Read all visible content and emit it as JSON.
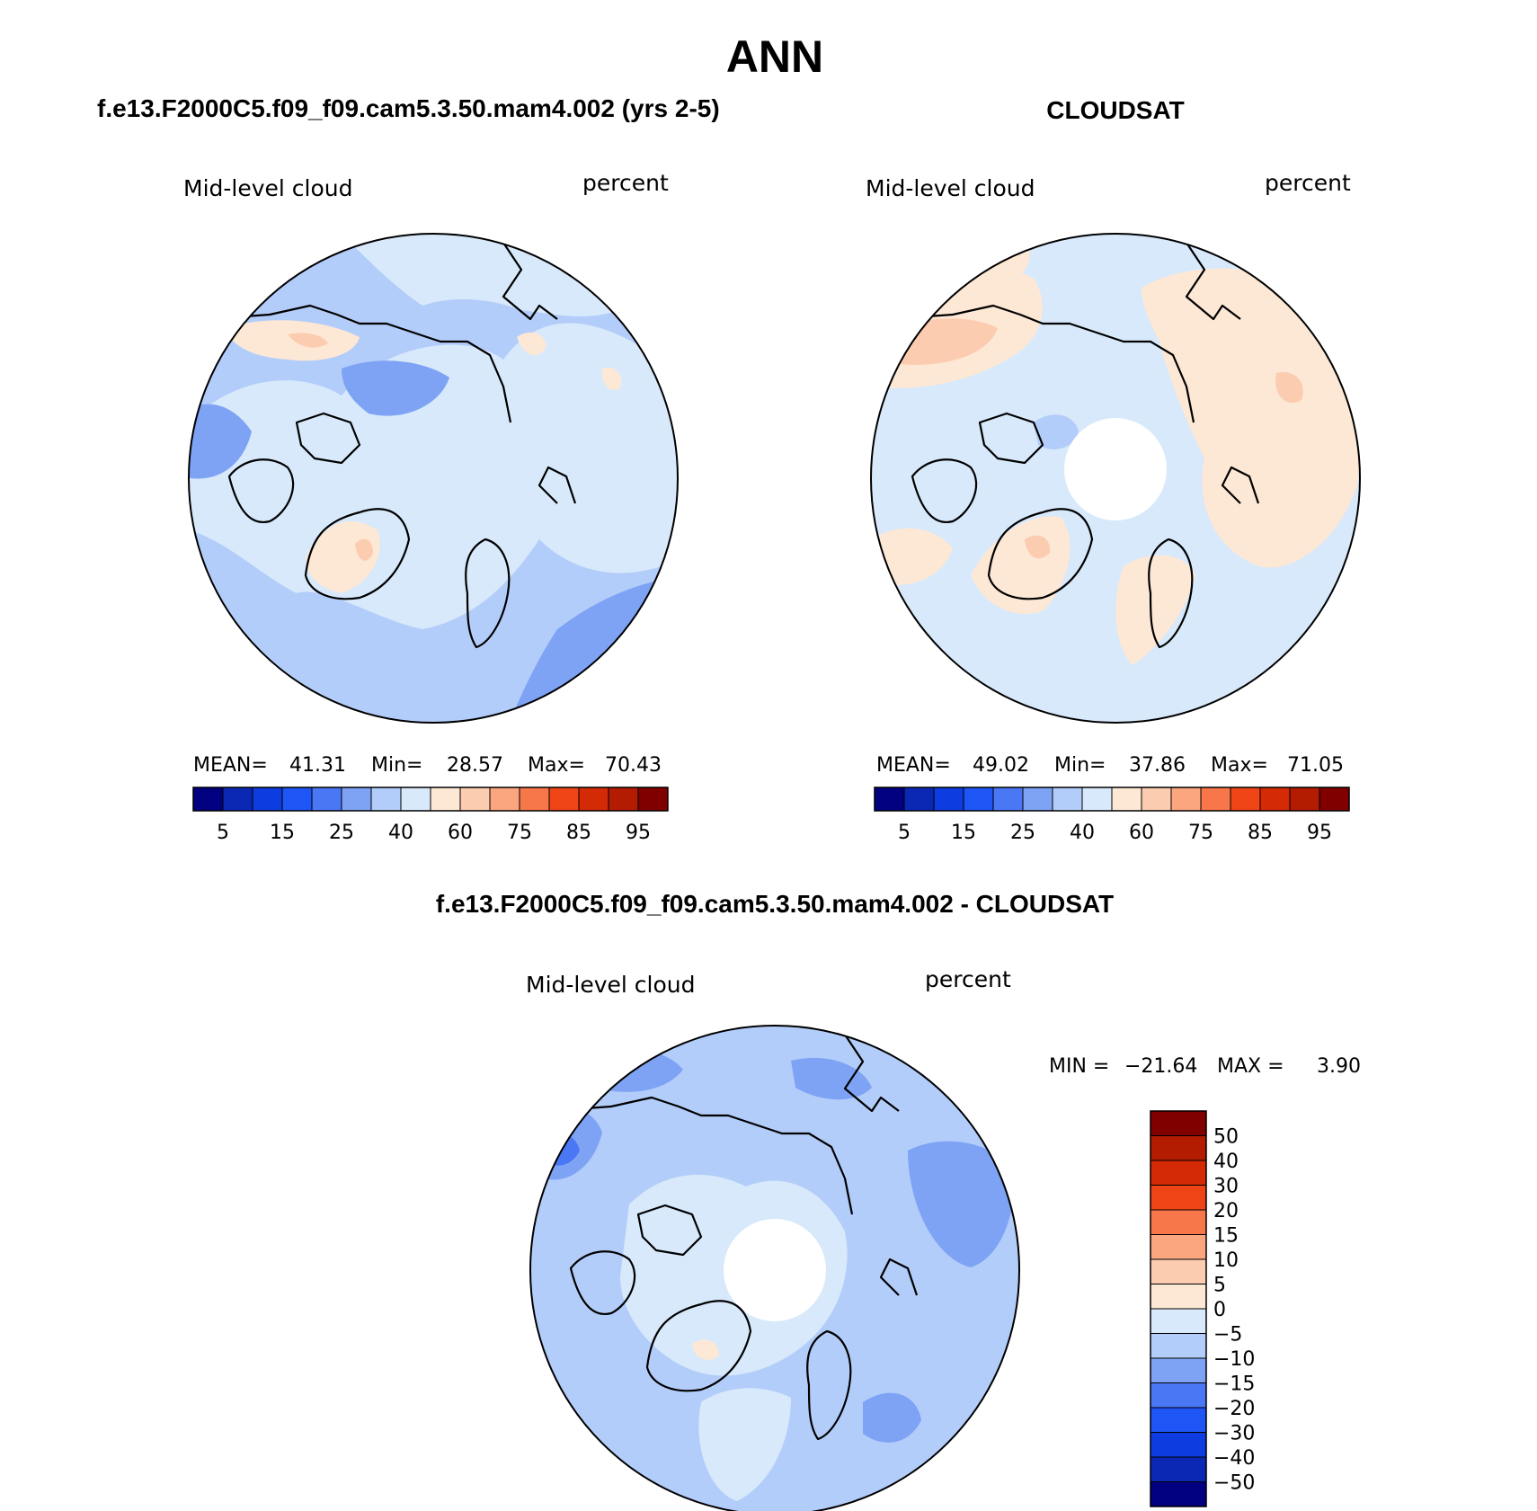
{
  "figure": {
    "title": "ANN",
    "units_label": "percent",
    "variable_label": "Mid-level cloud"
  },
  "colors": {
    "full_scale": [
      "#000080",
      "#0a28b4",
      "#0d3de0",
      "#1e55f5",
      "#4a78f5",
      "#7ea3f5",
      "#b3cdfa",
      "#d8e9fb",
      "#fde8d6",
      "#fcccb0",
      "#fba67f",
      "#f8774a",
      "#ee4416",
      "#d42a05",
      "#b31c00",
      "#800000"
    ],
    "diff_scale": [
      "#000080",
      "#0a28b4",
      "#0d3de0",
      "#1e55f5",
      "#4a78f5",
      "#7ea3f5",
      "#b3cdfa",
      "#d8e9fb",
      "#fde8d6",
      "#fcccb0",
      "#fba67f",
      "#f8774a",
      "#ee4416",
      "#d42a05",
      "#b31c00",
      "#800000"
    ],
    "coast": "#000000"
  },
  "chart_data": [
    {
      "type": "heatmap",
      "title": "f.e13.F2000C5.f09_f09.cam5.3.50.mam4.002 (yrs 2-5)",
      "projection": "north polar stereographic",
      "variable": "Mid-level cloud",
      "units": "percent",
      "stats": {
        "mean_label": "MEAN=",
        "mean": "41.31",
        "min_label": "Min=",
        "min": "28.57",
        "max_label": "Max=",
        "max": "70.43"
      },
      "colorbar_levels": [
        5,
        10,
        15,
        20,
        25,
        30,
        40,
        50,
        60,
        70,
        75,
        80,
        85,
        90,
        95
      ],
      "colorbar_labels": [
        "5",
        "15",
        "25",
        "40",
        "60",
        "75",
        "85",
        "95"
      ],
      "dominant_range": [
        30,
        50
      ]
    },
    {
      "type": "heatmap",
      "title": "CLOUDSAT",
      "projection": "north polar stereographic",
      "variable": "Mid-level cloud",
      "units": "percent",
      "stats": {
        "mean_label": "MEAN=",
        "mean": "49.02",
        "min_label": "Min=",
        "min": "37.86",
        "max_label": "Max=",
        "max": "71.05"
      },
      "colorbar_levels": [
        5,
        10,
        15,
        20,
        25,
        30,
        40,
        50,
        60,
        70,
        75,
        80,
        85,
        90,
        95
      ],
      "colorbar_labels": [
        "5",
        "15",
        "25",
        "40",
        "60",
        "75",
        "85",
        "95"
      ],
      "missing_region": "pole cap"
    },
    {
      "type": "heatmap",
      "title": "f.e13.F2000C5.f09_f09.cam5.3.50.mam4.002 - CLOUDSAT",
      "projection": "north polar stereographic",
      "variable": "Mid-level cloud",
      "units": "percent",
      "stats": {
        "min_label": "MIN =",
        "min": "−21.64",
        "max_label": "MAX =",
        "max": "3.90"
      },
      "colorbar_levels": [
        -50,
        -40,
        -30,
        -20,
        -15,
        -10,
        -5,
        0,
        5,
        10,
        15,
        20,
        30,
        40,
        50
      ],
      "colorbar_labels": [
        "50",
        "40",
        "30",
        "20",
        "15",
        "10",
        "5",
        "0",
        "−5",
        "−10",
        "−15",
        "−20",
        "−30",
        "−40",
        "−50"
      ],
      "missing_region": "pole cap"
    }
  ]
}
